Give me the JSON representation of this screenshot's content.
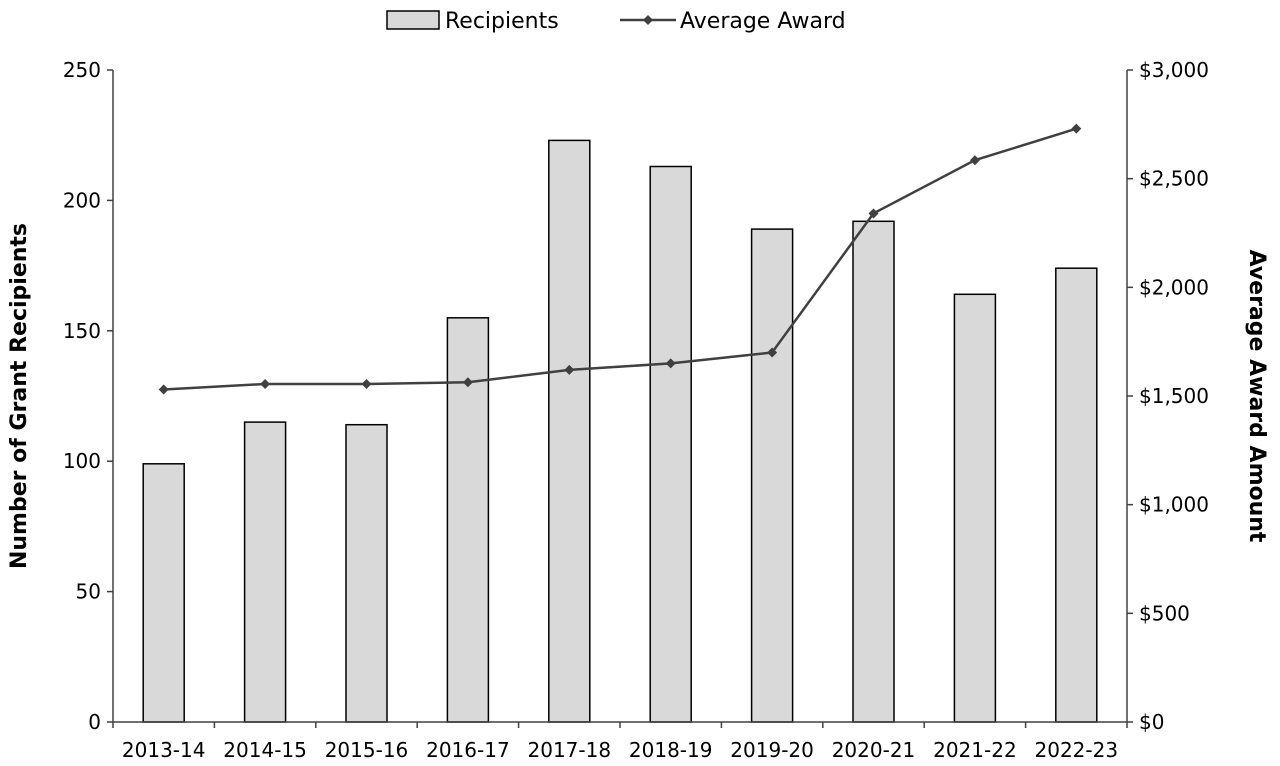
{
  "chart_data": {
    "type": "bar",
    "categories": [
      "2013-14",
      "2014-15",
      "2015-16",
      "2016-17",
      "2017-18",
      "2018-19",
      "2019-20",
      "2020-21",
      "2021-22",
      "2022-23"
    ],
    "series": [
      {
        "name": "Recipients",
        "type": "bar",
        "axis": "left",
        "values": [
          99,
          115,
          114,
          155,
          223,
          213,
          189,
          192,
          164,
          174
        ]
      },
      {
        "name": "Average Award",
        "type": "line",
        "axis": "right",
        "values": [
          1530,
          1555,
          1555,
          1563,
          1620,
          1650,
          1700,
          2340,
          2585,
          2730
        ]
      }
    ],
    "title": "",
    "xlabel": "",
    "ylabel": "Number of Grant Recipients",
    "y2label": "Average Award Amount",
    "ylim": [
      0,
      250
    ],
    "y2lim": [
      0,
      3000
    ],
    "yticks": [
      "0",
      "50",
      "100",
      "150",
      "200",
      "250"
    ],
    "y2ticks": [
      "$0",
      "$500",
      "$1,000",
      "$1,500",
      "$2,000",
      "$2,500",
      "$3,000"
    ],
    "grid": false,
    "legend": "top-center",
    "colors": {
      "bar_fill": "#d9d9d9",
      "bar_stroke": "#000000",
      "line": "#404040",
      "marker": "#404040",
      "axis": "#404040"
    }
  }
}
